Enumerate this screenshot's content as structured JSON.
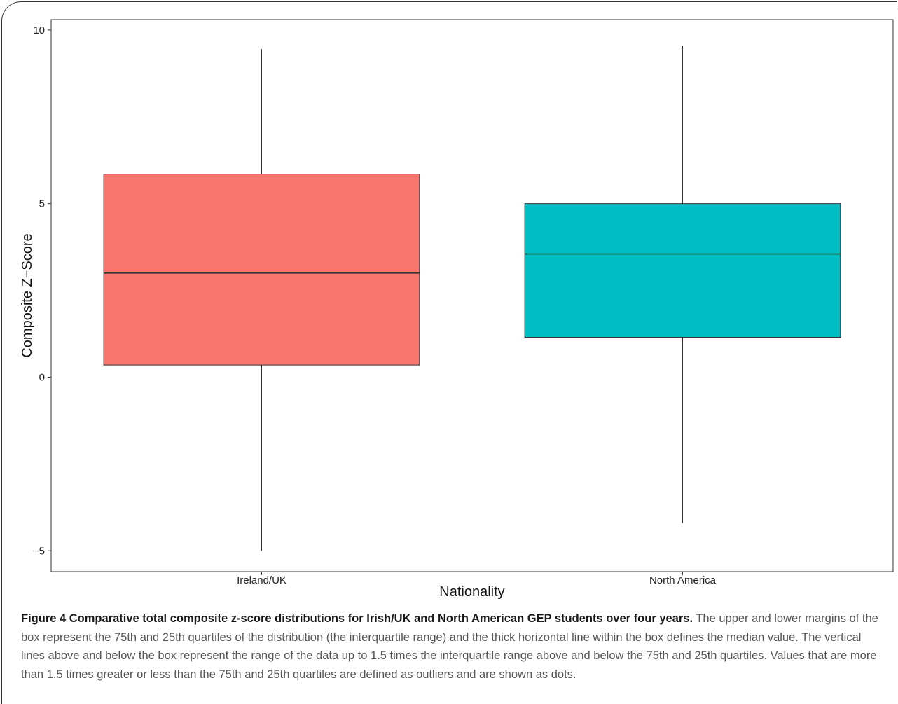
{
  "chart_data": {
    "type": "boxplot",
    "title": "",
    "xlabel": "Nationality",
    "ylabel": "Composite Z−Score",
    "ylim": [
      -5.6,
      10.3
    ],
    "yticks": [
      -5,
      0,
      5,
      10
    ],
    "ytick_labels": [
      "−5",
      "0",
      "5",
      "10"
    ],
    "grid": false,
    "categories": [
      "Ireland/UK",
      "North America"
    ],
    "boxes": [
      {
        "category": "Ireland/UK",
        "min": -5.0,
        "q1": 0.35,
        "median": 3.0,
        "q3": 5.85,
        "max": 9.45,
        "color": "#F8766D"
      },
      {
        "category": "North America",
        "min": -4.2,
        "q1": 1.15,
        "median": 3.55,
        "q3": 5.0,
        "max": 9.55,
        "color": "#00BFC4"
      }
    ]
  },
  "caption": {
    "title": "Figure 4 Comparative total composite z-score distributions for Irish/UK and North American GEP students over four years.",
    "body": "The upper and lower margins of the box represent the 75th and 25th quartiles of the distribution (the interquartile range) and the thick horizontal line within the box defines the median value. The vertical lines above and below the box represent the range of the data up to 1.5 times the interquartile range above and below the 75th and 25th quartiles. Values that are more than 1.5 times greater or less than the 75th and 25th quartiles are defined as outliers and are shown as dots."
  }
}
